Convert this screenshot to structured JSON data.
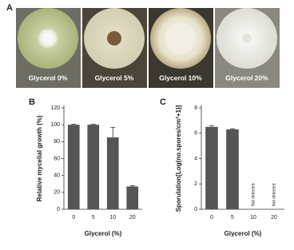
{
  "panel_labels": [
    "A",
    "B",
    "C"
  ],
  "photos": [
    "Glycerol 0%",
    "Glycerol 5%",
    "Glycerol 10%",
    "Glycerol 20%"
  ],
  "chart_data": [
    {
      "type": "bar",
      "y_label": "Relative mycelial growth (%)",
      "x_label": "Glycerol (%)",
      "categories": [
        "0",
        "5",
        "10",
        "20"
      ],
      "values": [
        100,
        100,
        85,
        27
      ],
      "errors": [
        0.5,
        0.5,
        12,
        1
      ],
      "color": "#555555",
      "ylim": [
        0,
        120
      ],
      "yticks": [
        0,
        20,
        40,
        60,
        80,
        100,
        120
      ]
    },
    {
      "type": "bar",
      "y_label": "Sporulation[Log(no.spores/cm²+1)]",
      "x_label": "Glycerol (%)",
      "categories": [
        "0",
        "5",
        "10",
        "20"
      ],
      "values": [
        6.5,
        6.3,
        null,
        null
      ],
      "errors": [
        0.1,
        0.05,
        null,
        null
      ],
      "annotations": [
        null,
        null,
        "Not detected",
        "Not detected"
      ],
      "color": "#555555",
      "ylim": [
        0,
        8
      ],
      "yticks": [
        0,
        2,
        4,
        6,
        8
      ]
    }
  ]
}
